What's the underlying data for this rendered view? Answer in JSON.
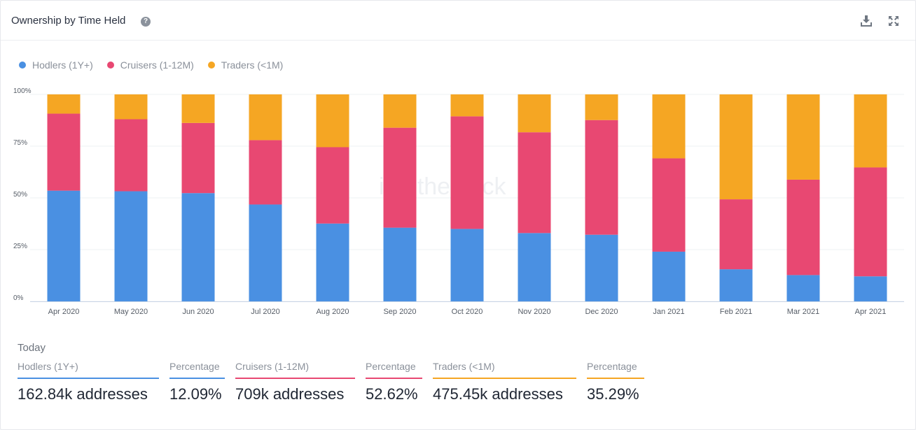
{
  "header": {
    "title": "Ownership by Time Held"
  },
  "icons": {
    "help": "question-circle-icon",
    "download": "download-icon",
    "fullscreen": "expand-icon"
  },
  "watermark": "intotheblock",
  "legend": [
    {
      "label": "Hodlers (1Y+)",
      "color": "#4a90e2"
    },
    {
      "label": "Cruisers (1-12M)",
      "color": "#e84872"
    },
    {
      "label": "Traders (<1M)",
      "color": "#f5a623"
    }
  ],
  "chart_data": {
    "type": "bar",
    "stacked": true,
    "title": "Ownership by Time Held",
    "categories": [
      "Apr 2020",
      "May 2020",
      "Jun 2020",
      "Jul 2020",
      "Aug 2020",
      "Sep 2020",
      "Oct 2020",
      "Nov 2020",
      "Dec 2020",
      "Jan 2021",
      "Feb 2021",
      "Mar 2021",
      "Apr 2021"
    ],
    "series": [
      {
        "name": "Hodlers (1Y+)",
        "color": "#4a90e2",
        "values": [
          53.5,
          53.2,
          52.3,
          46.8,
          37.6,
          35.6,
          35.0,
          33.0,
          32.2,
          24.0,
          15.5,
          12.7,
          12.09
        ]
      },
      {
        "name": "Cruisers (1-12M)",
        "color": "#e84872",
        "values": [
          37.2,
          34.8,
          33.9,
          31.1,
          36.9,
          48.3,
          54.4,
          48.7,
          55.4,
          45.1,
          33.8,
          46.1,
          52.62
        ]
      },
      {
        "name": "Traders (<1M)",
        "color": "#f5a623",
        "values": [
          9.3,
          12.0,
          13.8,
          22.1,
          25.5,
          16.1,
          10.6,
          18.3,
          12.4,
          30.9,
          50.7,
          41.2,
          35.29
        ]
      }
    ],
    "y_ticks": [
      "100%",
      "75%",
      "50%",
      "25%",
      "0%"
    ],
    "y_tick_values": [
      100,
      75,
      50,
      25,
      0
    ],
    "ylim": [
      0,
      100
    ],
    "xlabel": "",
    "ylabel": "",
    "legend_position": "top-left"
  },
  "today": {
    "label": "Today",
    "stats": [
      {
        "label": "Hodlers (1Y+)",
        "value": "162.84k addresses",
        "color": "#4a90e2"
      },
      {
        "label": "Percentage",
        "value": "12.09%",
        "color": "#4a90e2"
      },
      {
        "label": "Cruisers (1-12M)",
        "value": "709k addresses",
        "color": "#e84872"
      },
      {
        "label": "Percentage",
        "value": "52.62%",
        "color": "#e84872"
      },
      {
        "label": "Traders (<1M)",
        "value": "475.45k addresses",
        "color": "#f5a623"
      },
      {
        "label": "Percentage",
        "value": "35.29%",
        "color": "#f5a623"
      }
    ]
  }
}
